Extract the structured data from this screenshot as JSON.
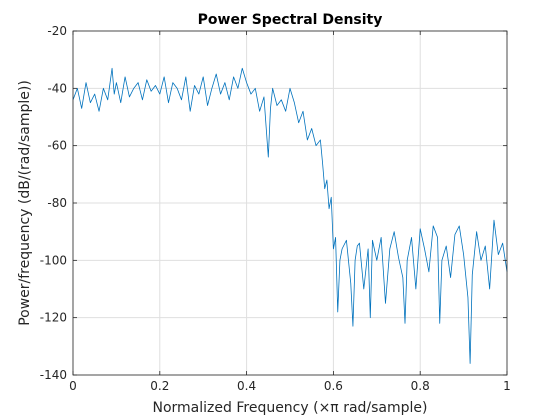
{
  "chart_data": {
    "type": "line",
    "title": "Power Spectral Density",
    "xlabel": "Normalized Frequency  (×π rad/sample)",
    "ylabel": "Power/frequency (dB/(rad/sample))",
    "xlim": [
      0,
      1
    ],
    "ylim": [
      -140,
      -20
    ],
    "xticks": [
      0,
      0.2,
      0.4,
      0.6,
      0.8,
      1
    ],
    "xtick_labels": [
      "0",
      "0.2",
      "0.4",
      "0.6",
      "0.8",
      "1"
    ],
    "yticks": [
      -140,
      -120,
      -100,
      -80,
      -60,
      -40,
      -20
    ],
    "ytick_labels": [
      "-140",
      "-120",
      "-100",
      "-80",
      "-60",
      "-40",
      "-20"
    ],
    "grid": true,
    "series": [
      {
        "color": "#0072bd",
        "x": [
          0.0,
          0.01,
          0.02,
          0.03,
          0.04,
          0.05,
          0.06,
          0.07,
          0.08,
          0.09,
          0.095,
          0.1,
          0.11,
          0.12,
          0.13,
          0.14,
          0.15,
          0.16,
          0.17,
          0.18,
          0.19,
          0.2,
          0.21,
          0.22,
          0.23,
          0.24,
          0.25,
          0.26,
          0.27,
          0.28,
          0.29,
          0.3,
          0.31,
          0.32,
          0.33,
          0.34,
          0.35,
          0.36,
          0.37,
          0.38,
          0.39,
          0.4,
          0.41,
          0.42,
          0.43,
          0.44,
          0.45,
          0.455,
          0.46,
          0.47,
          0.48,
          0.49,
          0.5,
          0.51,
          0.52,
          0.53,
          0.54,
          0.55,
          0.56,
          0.57,
          0.575,
          0.58,
          0.585,
          0.59,
          0.595,
          0.6,
          0.605,
          0.61,
          0.615,
          0.62,
          0.63,
          0.64,
          0.645,
          0.65,
          0.655,
          0.66,
          0.67,
          0.68,
          0.685,
          0.69,
          0.7,
          0.71,
          0.72,
          0.73,
          0.74,
          0.75,
          0.76,
          0.765,
          0.77,
          0.78,
          0.79,
          0.8,
          0.81,
          0.82,
          0.83,
          0.84,
          0.845,
          0.85,
          0.86,
          0.87,
          0.88,
          0.89,
          0.9,
          0.91,
          0.915,
          0.92,
          0.93,
          0.94,
          0.95,
          0.96,
          0.97,
          0.98,
          0.99,
          1.0
        ],
        "y": [
          -44,
          -40,
          -47,
          -38,
          -45,
          -42,
          -48,
          -40,
          -44,
          -33,
          -42,
          -38,
          -45,
          -36,
          -43,
          -40,
          -38,
          -44,
          -37,
          -41,
          -39,
          -42,
          -36,
          -45,
          -38,
          -40,
          -44,
          -36,
          -48,
          -39,
          -42,
          -36,
          -46,
          -40,
          -35,
          -42,
          -38,
          -44,
          -36,
          -40,
          -33,
          -38,
          -42,
          -40,
          -48,
          -43,
          -64,
          -47,
          -40,
          -46,
          -44,
          -48,
          -40,
          -45,
          -52,
          -48,
          -58,
          -54,
          -60,
          -58,
          -66,
          -75,
          -72,
          -82,
          -78,
          -96,
          -92,
          -118,
          -100,
          -96,
          -93,
          -108,
          -123,
          -100,
          -95,
          -94,
          -110,
          -96,
          -120,
          -93,
          -100,
          -92,
          -115,
          -96,
          -90,
          -99,
          -106,
          -122,
          -100,
          -92,
          -110,
          -89,
          -96,
          -104,
          -88,
          -92,
          -122,
          -100,
          -95,
          -106,
          -91,
          -88,
          -98,
          -113,
          -136,
          -105,
          -90,
          -100,
          -95,
          -110,
          -86,
          -98,
          -94,
          -104
        ]
      }
    ]
  }
}
